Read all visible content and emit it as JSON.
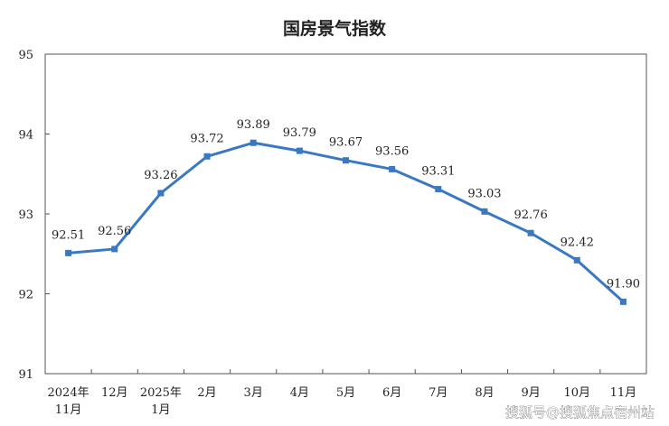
{
  "chart_data": {
    "type": "line",
    "title": "国房景气指数",
    "categories": [
      [
        "2024年",
        "11月"
      ],
      [
        "12月"
      ],
      [
        "2025年",
        "1月"
      ],
      [
        "2月"
      ],
      [
        "3月"
      ],
      [
        "4月"
      ],
      [
        "5月"
      ],
      [
        "6月"
      ],
      [
        "7月"
      ],
      [
        "8月"
      ],
      [
        "9月"
      ],
      [
        "10月"
      ],
      [
        "11月"
      ]
    ],
    "values": [
      92.51,
      92.56,
      93.26,
      93.72,
      93.89,
      93.79,
      93.67,
      93.56,
      93.31,
      93.03,
      92.76,
      92.42,
      91.9
    ],
    "value_labels": [
      "92.51",
      "92.56",
      "93.26",
      "93.72",
      "93.89",
      "93.79",
      "93.67",
      "93.56",
      "93.31",
      "93.03",
      "92.76",
      "92.42",
      "91.90"
    ],
    "ylim": [
      91,
      95
    ],
    "yticks": [
      91,
      92,
      93,
      94,
      95
    ],
    "grid": false,
    "legend": "none",
    "line_color": "#3a78c3",
    "xlabel": "",
    "ylabel": ""
  },
  "watermark": "搜狐号@搜狐焦点宿州站"
}
